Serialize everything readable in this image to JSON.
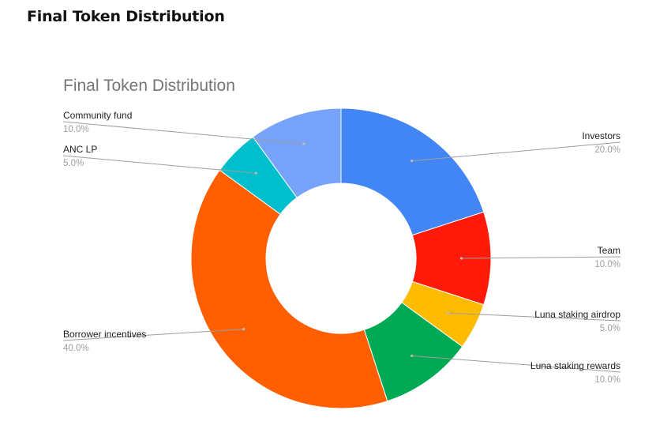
{
  "page": {
    "heading": "Final Token Distribution"
  },
  "chart_data": {
    "type": "pie",
    "donut": true,
    "title": "Final Token Distribution",
    "slices": [
      {
        "label": "Investors",
        "value": 20.0,
        "display": "20.0%",
        "color": "#4285f4"
      },
      {
        "label": "Team",
        "value": 10.0,
        "display": "10.0%",
        "color": "#ff1a0a"
      },
      {
        "label": "Luna staking airdrop",
        "value": 5.0,
        "display": "5.0%",
        "color": "#ffbb00"
      },
      {
        "label": "Luna staking rewards",
        "value": 10.0,
        "display": "10.0%",
        "color": "#00aa55"
      },
      {
        "label": "Borrower incentives",
        "value": 40.0,
        "display": "40.0%",
        "color": "#ff5f00"
      },
      {
        "label": "ANC LP",
        "value": 5.0,
        "display": "5.0%",
        "color": "#00bfcc"
      },
      {
        "label": "Community fund",
        "value": 10.0,
        "display": "10.0%",
        "color": "#76a2f9"
      }
    ]
  }
}
